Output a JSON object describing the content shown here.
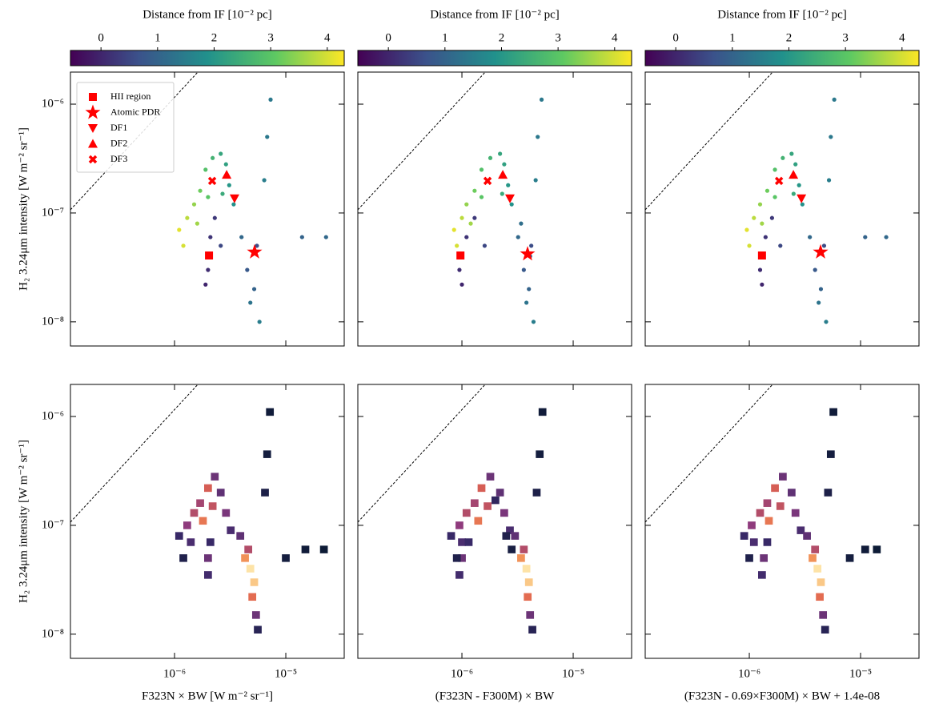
{
  "chart_data": [
    {
      "type": "scatter",
      "xscale": "log",
      "yscale": "log",
      "xlim": [
        1.16e-07,
        3.35e-05
      ],
      "ylim": [
        6e-09,
        1.97e-06
      ],
      "xticks": [
        1e-06,
        1e-05
      ],
      "yticks": [
        {
          "value": 1e-08,
          "label": "10⁻⁸"
        },
        {
          "value": 1e-07,
          "label": "10⁻⁷"
        },
        {
          "value": 1e-06,
          "label": "10⁻⁶"
        }
      ],
      "ylabel": "H₂ 3.24μm intensity [W m⁻² sr⁻¹]",
      "colorbar": {
        "label": "Distance from IF [10⁻² pc]",
        "lim": [
          -0.54,
          4.3
        ],
        "ticks": [
          0,
          1,
          2,
          3,
          4
        ],
        "cmap_colors": [
          "#440154",
          "#3b528b",
          "#21918c",
          "#5ec962",
          "#fde725"
        ]
      },
      "reference_line": {
        "x": [
          1.16e-07,
          1.62e-06
        ],
        "y": [
          1.07e-07,
          1.97e-06
        ]
      },
      "x": [
        1.1e-06,
        1.2e-06,
        1.3e-06,
        1.5e-06,
        1.7e-06,
        1.9e-06,
        2.2e-06,
        2.6e-06,
        2.9e-06,
        3.1e-06,
        3.4e-06,
        2e-06,
        1.6e-06,
        2.7e-06,
        2e-06,
        2.1e-06,
        1.9e-06,
        2.3e-06,
        2.6e-06,
        4.5e-06,
        5.2e-06,
        5.5e-06,
        4.8e-06,
        5.8e-06,
        4e-06,
        6.4e-06,
        6.8e-06,
        7.3e-06,
        1.4e-05,
        2.3e-05
      ],
      "values": [
        7e-08,
        5e-08,
        9e-08,
        1.2e-07,
        1.6e-07,
        2.5e-07,
        3.2e-07,
        3.5e-07,
        2.8e-07,
        1.8e-07,
        1.2e-07,
        1.4e-07,
        8e-08,
        1.5e-07,
        3e-08,
        6e-08,
        2.2e-08,
        9e-08,
        5e-08,
        3e-08,
        2e-08,
        5e-08,
        1.5e-08,
        1e-08,
        6e-08,
        2e-07,
        5e-07,
        1.1e-06,
        6e-08,
        6e-08
      ],
      "c": [
        4.1,
        4.0,
        3.8,
        3.5,
        3.2,
        2.9,
        2.6,
        2.3,
        2.2,
        2.0,
        1.9,
        3.0,
        3.6,
        2.4,
        0.1,
        0.2,
        0.0,
        0.3,
        0.5,
        0.8,
        1.0,
        0.6,
        1.3,
        1.5,
        1.1,
        1.5,
        1.4,
        1.4,
        1.0,
        1.1
      ],
      "legend": "upper left",
      "marker_color": "#ff0000",
      "markers": [
        {
          "name": "HII region",
          "shape": "square",
          "x": 2.04e-06,
          "y": 4.07e-08
        },
        {
          "name": "Atomic PDR",
          "shape": "star",
          "x": 5.24e-06,
          "y": 4.37e-08
        },
        {
          "name": "DF1",
          "shape": "triangle-down",
          "x": 3.46e-06,
          "y": 1.36e-07
        },
        {
          "name": "DF2",
          "shape": "triangle-up",
          "x": 2.94e-06,
          "y": 2.25e-07
        },
        {
          "name": "DF3",
          "shape": "x",
          "x": 2.18e-06,
          "y": 1.97e-07
        }
      ]
    },
    {
      "type": "scatter",
      "xscale": "log",
      "yscale": "log",
      "xlim": [
        1.16e-07,
        3.35e-05
      ],
      "ylim": [
        6e-09,
        1.97e-06
      ],
      "xticks": [
        1e-06,
        1e-05
      ],
      "yticks": [
        1e-08,
        1e-07,
        1e-06
      ],
      "colorbar": {
        "label": "Distance from IF [10⁻² pc]",
        "lim": [
          -0.54,
          4.3
        ],
        "ticks": [
          0,
          1,
          2,
          3,
          4
        ],
        "cmap_colors": [
          "#440154",
          "#3b528b",
          "#21918c",
          "#5ec962",
          "#fde725"
        ]
      },
      "reference_line": {
        "x": [
          1.16e-07,
          1.62e-06
        ],
        "y": [
          1.07e-07,
          1.97e-06
        ]
      },
      "x": [
        8.5e-07,
        9e-07,
        1e-06,
        1.1e-06,
        1.3e-06,
        1.5e-06,
        1.8e-06,
        2.2e-06,
        2.4e-06,
        2.6e-06,
        2.8e-06,
        1.5e-06,
        1.2e-06,
        2.3e-06,
        9.5e-07,
        1.1e-06,
        1e-06,
        1.3e-06,
        1.6e-06,
        3.6e-06,
        4e-06,
        4.2e-06,
        3.8e-06,
        4.4e-06,
        3.2e-06,
        4.6e-06,
        4.8e-06,
        5.2e-06,
        3.4e-06,
        4.1e-06
      ],
      "values": [
        7e-08,
        5e-08,
        9e-08,
        1.2e-07,
        1.6e-07,
        2.5e-07,
        3.2e-07,
        3.5e-07,
        2.8e-07,
        1.8e-07,
        1.2e-07,
        1.4e-07,
        8e-08,
        1.5e-07,
        3e-08,
        6e-08,
        2.2e-08,
        9e-08,
        5e-08,
        3e-08,
        2e-08,
        5e-08,
        1.5e-08,
        1e-08,
        6e-08,
        2e-07,
        5e-07,
        1.1e-06,
        8e-08,
        4e-08
      ],
      "c": [
        4.1,
        4.0,
        3.8,
        3.5,
        3.2,
        2.9,
        2.6,
        2.3,
        2.2,
        2.0,
        1.9,
        3.0,
        3.6,
        2.4,
        0.1,
        0.2,
        0.0,
        0.3,
        0.5,
        0.8,
        1.0,
        0.6,
        1.3,
        1.5,
        1.1,
        1.5,
        1.4,
        1.4,
        1.2,
        0.9
      ],
      "marker_color": "#ff0000",
      "markers": [
        {
          "shape": "square",
          "x": 9.7e-07,
          "y": 4.07e-08
        },
        {
          "shape": "star",
          "x": 3.89e-06,
          "y": 4.2e-08
        },
        {
          "shape": "triangle-down",
          "x": 2.7e-06,
          "y": 1.36e-07
        },
        {
          "shape": "triangle-up",
          "x": 2.33e-06,
          "y": 2.25e-07
        },
        {
          "shape": "x",
          "x": 1.7e-06,
          "y": 1.97e-07
        }
      ]
    },
    {
      "type": "scatter",
      "xscale": "log",
      "yscale": "log",
      "xlim": [
        1.16e-07,
        3.35e-05
      ],
      "ylim": [
        6e-09,
        1.97e-06
      ],
      "xticks": [
        1e-06,
        1e-05
      ],
      "yticks": [
        1e-08,
        1e-07,
        1e-06
      ],
      "colorbar": {
        "label": "Distance from IF [10⁻² pc]",
        "lim": [
          -0.54,
          4.3
        ],
        "ticks": [
          0,
          1,
          2,
          3,
          4
        ],
        "cmap_colors": [
          "#440154",
          "#3b528b",
          "#21918c",
          "#5ec962",
          "#fde725"
        ]
      },
      "reference_line": {
        "x": [
          1.16e-07,
          1.62e-06
        ],
        "y": [
          1.07e-07,
          1.97e-06
        ]
      },
      "x": [
        9.5e-07,
        1e-06,
        1.1e-06,
        1.25e-06,
        1.45e-06,
        1.7e-06,
        2e-06,
        2.4e-06,
        2.6e-06,
        2.8e-06,
        3e-06,
        1.7e-06,
        1.3e-06,
        2.5e-06,
        1.25e-06,
        1.4e-06,
        1.3e-06,
        1.6e-06,
        1.9e-06,
        3.9e-06,
        4.4e-06,
        4.7e-06,
        4.2e-06,
        4.9e-06,
        3.5e-06,
        5.2e-06,
        5.4e-06,
        5.8e-06,
        1.1e-05,
        1.7e-05
      ],
      "values": [
        7e-08,
        5e-08,
        9e-08,
        1.2e-07,
        1.6e-07,
        2.5e-07,
        3.2e-07,
        3.5e-07,
        2.8e-07,
        1.8e-07,
        1.2e-07,
        1.4e-07,
        8e-08,
        1.5e-07,
        3e-08,
        6e-08,
        2.2e-08,
        9e-08,
        5e-08,
        3e-08,
        2e-08,
        5e-08,
        1.5e-08,
        1e-08,
        6e-08,
        2e-07,
        5e-07,
        1.1e-06,
        6e-08,
        6e-08
      ],
      "c": [
        4.1,
        4.0,
        3.8,
        3.5,
        3.2,
        2.9,
        2.6,
        2.3,
        2.2,
        2.0,
        1.9,
        3.0,
        3.6,
        2.4,
        0.1,
        0.2,
        0.0,
        0.3,
        0.5,
        0.8,
        1.0,
        0.6,
        1.3,
        1.5,
        1.1,
        1.5,
        1.4,
        1.4,
        1.0,
        1.1
      ],
      "marker_color": "#ff0000",
      "markers": [
        {
          "shape": "square",
          "x": 1.3e-06,
          "y": 4.07e-08
        },
        {
          "shape": "star",
          "x": 4.37e-06,
          "y": 4.37e-08
        },
        {
          "shape": "triangle-down",
          "x": 2.94e-06,
          "y": 1.36e-07
        },
        {
          "shape": "triangle-up",
          "x": 2.49e-06,
          "y": 2.25e-07
        },
        {
          "shape": "x",
          "x": 1.85e-06,
          "y": 1.97e-07
        }
      ]
    },
    {
      "type": "hist2d",
      "xscale": "log",
      "yscale": "log",
      "xlim": [
        1.16e-07,
        3.35e-05
      ],
      "ylim": [
        6e-09,
        1.97e-06
      ],
      "xticks": [
        {
          "value": 1e-06,
          "label": "10⁻⁶"
        },
        {
          "value": 1e-05,
          "label": "10⁻⁵"
        }
      ],
      "yticks": [
        {
          "value": 1e-08,
          "label": "10⁻⁸"
        },
        {
          "value": 1e-07,
          "label": "10⁻⁷"
        },
        {
          "value": 1e-06,
          "label": "10⁻⁶"
        }
      ],
      "xlabel": "F323N × BW [W m⁻² sr⁻¹]",
      "ylabel": "H₂ 3.24μm intensity [W m⁻² sr⁻¹]",
      "reference_line": {
        "x": [
          1.16e-07,
          1.62e-06
        ],
        "y": [
          1.07e-07,
          1.97e-06
        ]
      },
      "cell_dex": 0.07,
      "clim": [
        1,
        60
      ],
      "cmap_colors": [
        "#0d1b36",
        "#3b2a6b",
        "#8c3a7f",
        "#e0634f",
        "#f7a35c",
        "#fde3a7"
      ],
      "x": [
        1.1e-06,
        1.3e-06,
        1.5e-06,
        1.7e-06,
        2e-06,
        2.3e-06,
        2.6e-06,
        1.4e-06,
        1.8e-06,
        2.2e-06,
        2.9e-06,
        3.2e-06,
        2e-06,
        2e-06,
        2.1e-06,
        4.3e-06,
        4.8e-06,
        5.2e-06,
        5e-06,
        5.4e-06,
        4.6e-06,
        5.6e-06,
        3.9e-06,
        6.5e-06,
        6.8e-06,
        7.2e-06,
        1e-05,
        1.5e-05,
        2.2e-05,
        1.2e-06
      ],
      "y": [
        8e-08,
        1e-07,
        1.3e-07,
        1.6e-07,
        2.2e-07,
        2.8e-07,
        2e-07,
        7e-08,
        1.1e-07,
        1.5e-07,
        1.3e-07,
        9e-08,
        3.5e-08,
        5e-08,
        7e-08,
        5e-08,
        4e-08,
        3e-08,
        2.2e-08,
        1.5e-08,
        6e-08,
        1.1e-08,
        8e-08,
        2e-07,
        4.5e-07,
        1.1e-06,
        5e-08,
        6e-08,
        6e-08,
        5e-08
      ],
      "values": [
        12,
        25,
        30,
        28,
        35,
        20,
        18,
        15,
        40,
        32,
        22,
        15,
        14,
        20,
        12,
        45,
        60,
        55,
        38,
        20,
        30,
        8,
        18,
        5,
        3,
        2,
        3,
        2,
        1,
        6
      ]
    },
    {
      "type": "hist2d",
      "xscale": "log",
      "yscale": "log",
      "xlim": [
        1.16e-07,
        3.35e-05
      ],
      "ylim": [
        6e-09,
        1.97e-06
      ],
      "xticks": [
        {
          "value": 1e-06,
          "label": "10⁻⁶"
        },
        {
          "value": 1e-05,
          "label": "10⁻⁵"
        }
      ],
      "yticks": [
        1e-08,
        1e-07,
        1e-06
      ],
      "xlabel": "(F323N - F300M) × BW",
      "reference_line": {
        "x": [
          1.16e-07,
          1.62e-06
        ],
        "y": [
          1.07e-07,
          1.97e-06
        ]
      },
      "cell_dex": 0.07,
      "clim": [
        1,
        60
      ],
      "cmap_colors": [
        "#0d1b36",
        "#3b2a6b",
        "#8c3a7f",
        "#e0634f",
        "#f7a35c",
        "#fde3a7"
      ],
      "x": [
        8e-07,
        9.5e-07,
        1.1e-06,
        1.3e-06,
        1.5e-06,
        1.8e-06,
        2.2e-06,
        1e-06,
        1.4e-06,
        1.7e-06,
        2.4e-06,
        2.7e-06,
        9.5e-07,
        1e-06,
        1.15e-06,
        3.4e-06,
        3.8e-06,
        4e-06,
        3.9e-06,
        4.1e-06,
        3.6e-06,
        4.3e-06,
        3e-06,
        4.7e-06,
        5e-06,
        5.3e-06,
        2e-06,
        2.5e-06,
        2.8e-06,
        9e-07
      ],
      "y": [
        8e-08,
        1e-07,
        1.3e-07,
        1.6e-07,
        2.2e-07,
        2.8e-07,
        2e-07,
        7e-08,
        1.1e-07,
        1.5e-07,
        1.3e-07,
        9e-08,
        3.5e-08,
        5e-08,
        7e-08,
        5e-08,
        4e-08,
        3e-08,
        2.2e-08,
        1.5e-08,
        6e-08,
        1.1e-08,
        8e-08,
        2e-07,
        4.5e-07,
        1.1e-06,
        1.7e-07,
        8e-08,
        6e-08,
        5e-08
      ],
      "values": [
        12,
        25,
        30,
        28,
        35,
        20,
        18,
        15,
        40,
        32,
        22,
        15,
        14,
        20,
        12,
        45,
        60,
        55,
        38,
        20,
        30,
        8,
        18,
        5,
        3,
        2,
        10,
        6,
        4,
        6
      ]
    },
    {
      "type": "hist2d",
      "xscale": "log",
      "yscale": "log",
      "xlim": [
        1.16e-07,
        3.35e-05
      ],
      "ylim": [
        6e-09,
        1.97e-06
      ],
      "xticks": [
        {
          "value": 1e-06,
          "label": "10⁻⁶"
        },
        {
          "value": 1e-05,
          "label": "10⁻⁵"
        }
      ],
      "yticks": [
        1e-08,
        1e-07,
        1e-06
      ],
      "xlabel": "(F323N - 0.69×F300M) × BW + 1.4e-08",
      "reference_line": {
        "x": [
          1.16e-07,
          1.62e-06
        ],
        "y": [
          1.07e-07,
          1.97e-06
        ]
      },
      "cell_dex": 0.07,
      "clim": [
        1,
        60
      ],
      "cmap_colors": [
        "#0d1b36",
        "#3b2a6b",
        "#8c3a7f",
        "#e0634f",
        "#f7a35c",
        "#fde3a7"
      ],
      "x": [
        9e-07,
        1.05e-06,
        1.25e-06,
        1.45e-06,
        1.7e-06,
        2e-06,
        2.4e-06,
        1.1e-06,
        1.5e-06,
        1.9e-06,
        2.6e-06,
        2.9e-06,
        1.3e-06,
        1.35e-06,
        1.45e-06,
        3.7e-06,
        4.1e-06,
        4.4e-06,
        4.3e-06,
        4.6e-06,
        3.9e-06,
        4.8e-06,
        3.3e-06,
        5.1e-06,
        5.4e-06,
        5.7e-06,
        8e-06,
        1.1e-05,
        1.4e-05,
        1e-06
      ],
      "y": [
        8e-08,
        1e-07,
        1.3e-07,
        1.6e-07,
        2.2e-07,
        2.8e-07,
        2e-07,
        7e-08,
        1.1e-07,
        1.5e-07,
        1.3e-07,
        9e-08,
        3.5e-08,
        5e-08,
        7e-08,
        5e-08,
        4e-08,
        3e-08,
        2.2e-08,
        1.5e-08,
        6e-08,
        1.1e-08,
        8e-08,
        2e-07,
        4.5e-07,
        1.1e-06,
        5e-08,
        6e-08,
        6e-08,
        5e-08
      ],
      "values": [
        12,
        25,
        30,
        28,
        35,
        20,
        18,
        15,
        40,
        32,
        22,
        15,
        14,
        20,
        12,
        45,
        60,
        55,
        38,
        20,
        30,
        8,
        18,
        5,
        3,
        2,
        3,
        2,
        1,
        6
      ]
    }
  ]
}
